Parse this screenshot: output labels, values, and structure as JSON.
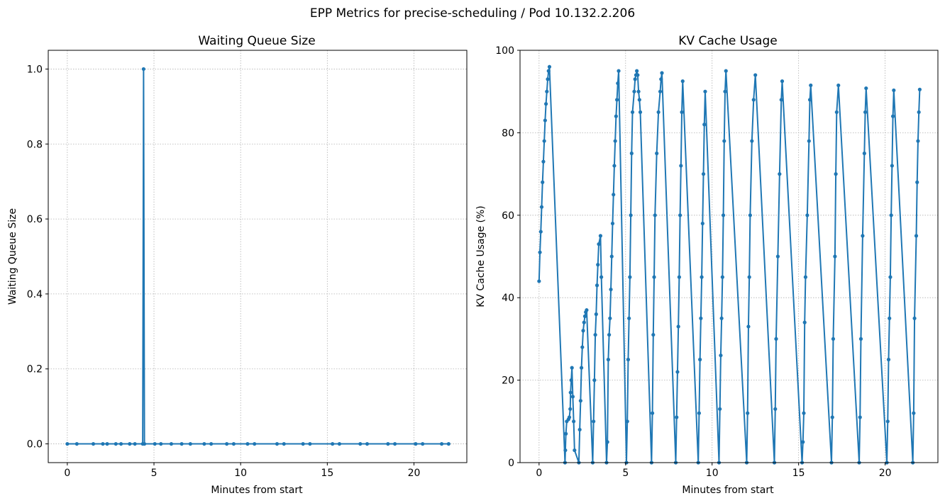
{
  "figure": {
    "title": "EPP Metrics for precise-scheduling / Pod 10.132.2.206"
  },
  "style": {
    "line_color": "#1f77b4",
    "grid_color": "#b0b0b0"
  },
  "chart_data": [
    {
      "type": "line",
      "title": "Waiting Queue Size",
      "xlabel": "Minutes from start",
      "ylabel": "Waiting Queue Size",
      "xlim": [
        -1.1,
        23.05
      ],
      "ylim": [
        -0.05,
        1.05
      ],
      "xticks": [
        0,
        5,
        10,
        15,
        20
      ],
      "yticks": [
        0.0,
        0.2,
        0.4,
        0.6,
        0.8,
        1.0
      ],
      "ytick_labels": [
        "0.0",
        "0.2",
        "0.4",
        "0.6",
        "0.8",
        "1.0"
      ],
      "grid": true,
      "marker": "dot",
      "series": [
        {
          "x": [
            0.0,
            0.55,
            1.5,
            2.05,
            2.3,
            2.8,
            3.1,
            3.6,
            3.9,
            4.35,
            4.4,
            4.45,
            5.05,
            5.4,
            6.0,
            6.6,
            7.1,
            7.9,
            8.3,
            9.2,
            9.6,
            10.4,
            10.8,
            12.1,
            12.5,
            13.6,
            14.0,
            15.3,
            15.7,
            16.9,
            17.3,
            18.5,
            18.9,
            20.1,
            20.5,
            21.6,
            22.0
          ],
          "y": [
            0,
            0,
            0,
            0,
            0,
            0,
            0,
            0,
            0,
            0,
            1,
            0,
            0,
            0,
            0,
            0,
            0,
            0,
            0,
            0,
            0,
            0,
            0,
            0,
            0,
            0,
            0,
            0,
            0,
            0,
            0,
            0,
            0,
            0,
            0,
            0,
            0
          ]
        }
      ]
    },
    {
      "type": "line",
      "title": "KV Cache Usage",
      "xlabel": "Minutes from start",
      "ylabel": "KV Cache Usage (%)",
      "xlim": [
        -1.1,
        23.05
      ],
      "ylim": [
        0,
        100
      ],
      "xticks": [
        0,
        5,
        10,
        15,
        20
      ],
      "yticks": [
        0,
        20,
        40,
        60,
        80,
        100
      ],
      "ytick_labels": [
        "0",
        "20",
        "40",
        "60",
        "80",
        "100"
      ],
      "grid": true,
      "marker": "dot",
      "series": [
        {
          "x": [
            0.0,
            0.05,
            0.1,
            0.15,
            0.2,
            0.25,
            0.3,
            0.35,
            0.4,
            0.45,
            0.5,
            0.55,
            0.6,
            1.5,
            1.52,
            1.55,
            1.6,
            1.7,
            1.75,
            1.8,
            1.82,
            1.86,
            1.9,
            1.95,
            2.0,
            2.05,
            2.3,
            2.35,
            2.4,
            2.45,
            2.5,
            2.55,
            2.6,
            2.65,
            2.7,
            2.75,
            3.1,
            3.15,
            3.2,
            3.25,
            3.3,
            3.35,
            3.4,
            3.45,
            3.55,
            3.6,
            3.9,
            3.95,
            4.0,
            4.05,
            4.1,
            4.15,
            4.2,
            4.25,
            4.3,
            4.35,
            4.4,
            4.45,
            4.5,
            4.55,
            4.6,
            5.05,
            5.1,
            5.15,
            5.2,
            5.25,
            5.3,
            5.35,
            5.4,
            5.5,
            5.55,
            5.6,
            5.65,
            5.7,
            5.75,
            5.8,
            5.85,
            6.5,
            6.55,
            6.6,
            6.65,
            6.7,
            6.8,
            6.9,
            7.0,
            7.05,
            7.1,
            7.9,
            7.95,
            8.0,
            8.05,
            8.1,
            8.15,
            8.2,
            8.25,
            8.3,
            9.2,
            9.25,
            9.3,
            9.35,
            9.4,
            9.45,
            9.5,
            9.55,
            9.6,
            10.4,
            10.45,
            10.5,
            10.55,
            10.6,
            10.65,
            10.7,
            10.75,
            10.8,
            12.0,
            12.05,
            12.1,
            12.15,
            12.2,
            12.3,
            12.4,
            12.5,
            13.6,
            13.65,
            13.7,
            13.8,
            13.9,
            14.0,
            14.05,
            15.2,
            15.25,
            15.3,
            15.35,
            15.4,
            15.5,
            15.6,
            15.65,
            15.7,
            16.9,
            16.95,
            17.0,
            17.1,
            17.15,
            17.2,
            17.3,
            18.5,
            18.55,
            18.6,
            18.7,
            18.8,
            18.85,
            18.9,
            20.1,
            20.15,
            20.2,
            20.25,
            20.3,
            20.35,
            20.4,
            20.45,
            20.5,
            21.6,
            21.65,
            21.7,
            21.8,
            21.85,
            21.9,
            21.95,
            22.0
          ],
          "y": [
            44,
            51,
            56,
            62,
            68,
            73,
            78,
            83,
            87,
            90,
            93,
            95,
            96,
            0,
            3,
            7,
            10,
            10.5,
            11,
            13,
            17,
            20,
            23,
            16,
            10,
            3,
            0,
            8,
            15,
            23,
            28,
            32,
            34,
            35.5,
            36.5,
            37,
            0,
            10,
            20,
            31,
            36,
            43,
            48,
            53,
            55,
            45,
            0,
            5,
            25,
            31,
            35,
            42,
            50,
            58,
            65,
            72,
            78,
            84,
            88,
            92,
            95,
            0,
            10,
            25,
            35,
            45,
            60,
            75,
            85,
            90,
            93,
            94,
            95,
            94,
            90,
            88,
            85,
            0,
            12,
            31,
            45,
            60,
            75,
            85,
            90,
            93,
            94.5,
            0,
            11,
            22,
            33,
            45,
            60,
            72,
            85,
            92.5,
            0,
            12,
            25,
            35,
            45,
            58,
            70,
            82,
            90,
            0,
            13,
            26,
            35,
            45,
            60,
            78,
            90,
            95,
            0,
            12,
            33,
            45,
            60,
            78,
            88,
            94,
            0,
            13,
            30,
            50,
            70,
            88,
            92.5,
            0,
            5,
            12,
            34,
            45,
            60,
            78,
            88,
            91.5,
            0,
            11,
            30,
            50,
            70,
            85,
            91.5,
            0,
            11,
            30,
            55,
            75,
            85,
            90.8,
            0,
            10,
            25,
            35,
            45,
            60,
            72,
            84,
            90.3,
            0,
            12,
            35,
            55,
            68,
            78,
            85,
            90.5
          ]
        }
      ]
    }
  ]
}
